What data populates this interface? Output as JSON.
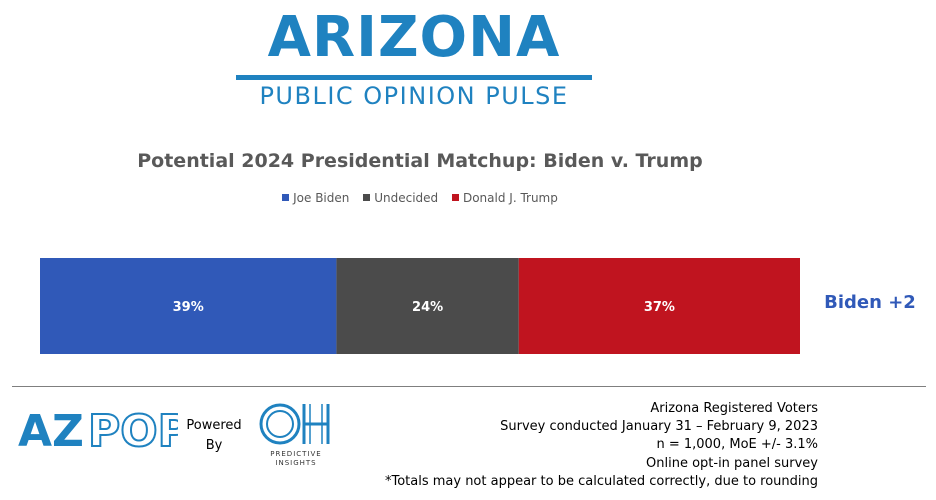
{
  "logo": {
    "main_text": "ARIZONA",
    "sub_text": "PUBLIC OPINION PULSE"
  },
  "chart_data": {
    "type": "bar",
    "orientation": "horizontal-stacked",
    "title": "Potential 2024 Presidential Matchup: Biden v. Trump",
    "xlabel": "",
    "ylabel": "",
    "categories": [
      ""
    ],
    "series": [
      {
        "name": "Joe Biden",
        "values": [
          39
        ],
        "label": "39%",
        "color": "#3059b8"
      },
      {
        "name": "Undecided",
        "values": [
          24
        ],
        "label": "24%",
        "color": "#4b4b4b"
      },
      {
        "name": "Donald J. Trump",
        "values": [
          37
        ],
        "label": "37%",
        "color": "#c0141f"
      }
    ],
    "xlim": [
      0,
      100
    ],
    "grid": false,
    "legend_position": "top-center",
    "annotation": "Biden +2"
  },
  "colors": {
    "brand_blue": "#1f82c0",
    "annotation_blue": "#3059b8"
  },
  "footer": {
    "azpop_logo": "AZPOP",
    "powered_by": [
      "Powered",
      "By"
    ],
    "oh_logo_letters": "OH",
    "oh_logo_text": [
      "PREDICTIVE",
      "INSIGHTS"
    ],
    "survey_lines": [
      "Arizona Registered Voters",
      "Survey conducted January 31 – February 9, 2023",
      "n = 1,000, MoE +/- 3.1%",
      "Online opt-in panel survey",
      "*Totals may not appear to be calculated correctly, due to rounding"
    ]
  }
}
